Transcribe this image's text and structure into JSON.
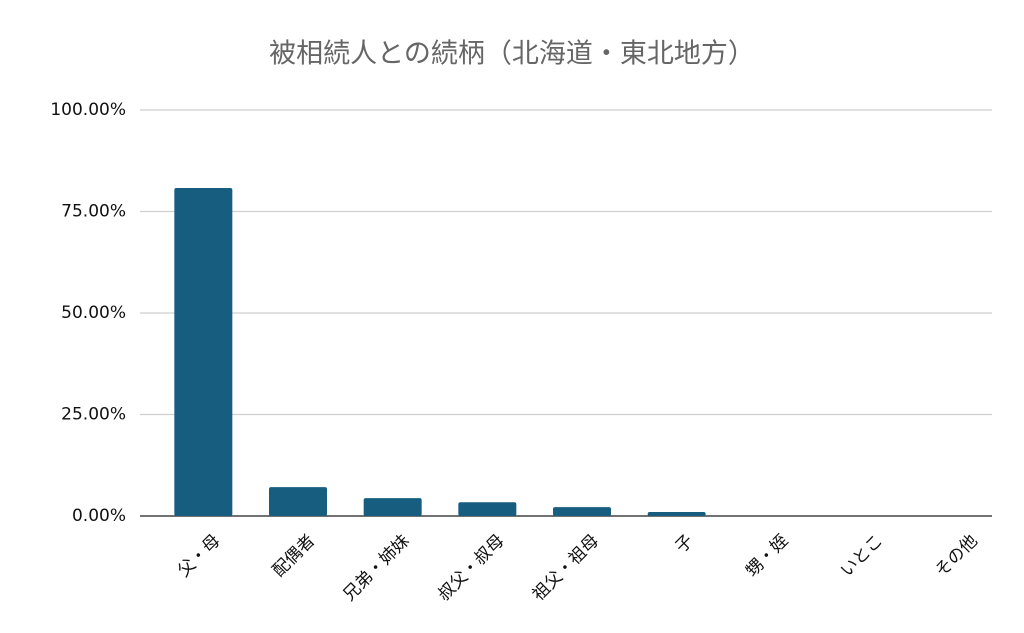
{
  "chart_data": {
    "type": "bar",
    "title": "被相続人との続柄（北海道・東北地方）",
    "categories": [
      "父・母",
      "配偶者",
      "兄弟・姉妹",
      "叔父・叔母",
      "祖父・祖母",
      "子",
      "甥・姪",
      "いとこ",
      "その他"
    ],
    "values": [
      80.8,
      7.1,
      4.4,
      3.4,
      2.2,
      1.0,
      0,
      0,
      0
    ],
    "color": "#175d7f",
    "ylim": [
      0,
      100
    ],
    "yticks": [
      {
        "value": 0,
        "label": "0.00%"
      },
      {
        "value": 25,
        "label": "25.00%"
      },
      {
        "value": 50,
        "label": "50.00%"
      },
      {
        "value": 75,
        "label": "75.00%"
      },
      {
        "value": 100,
        "label": "100.00%"
      }
    ],
    "grid": true
  }
}
